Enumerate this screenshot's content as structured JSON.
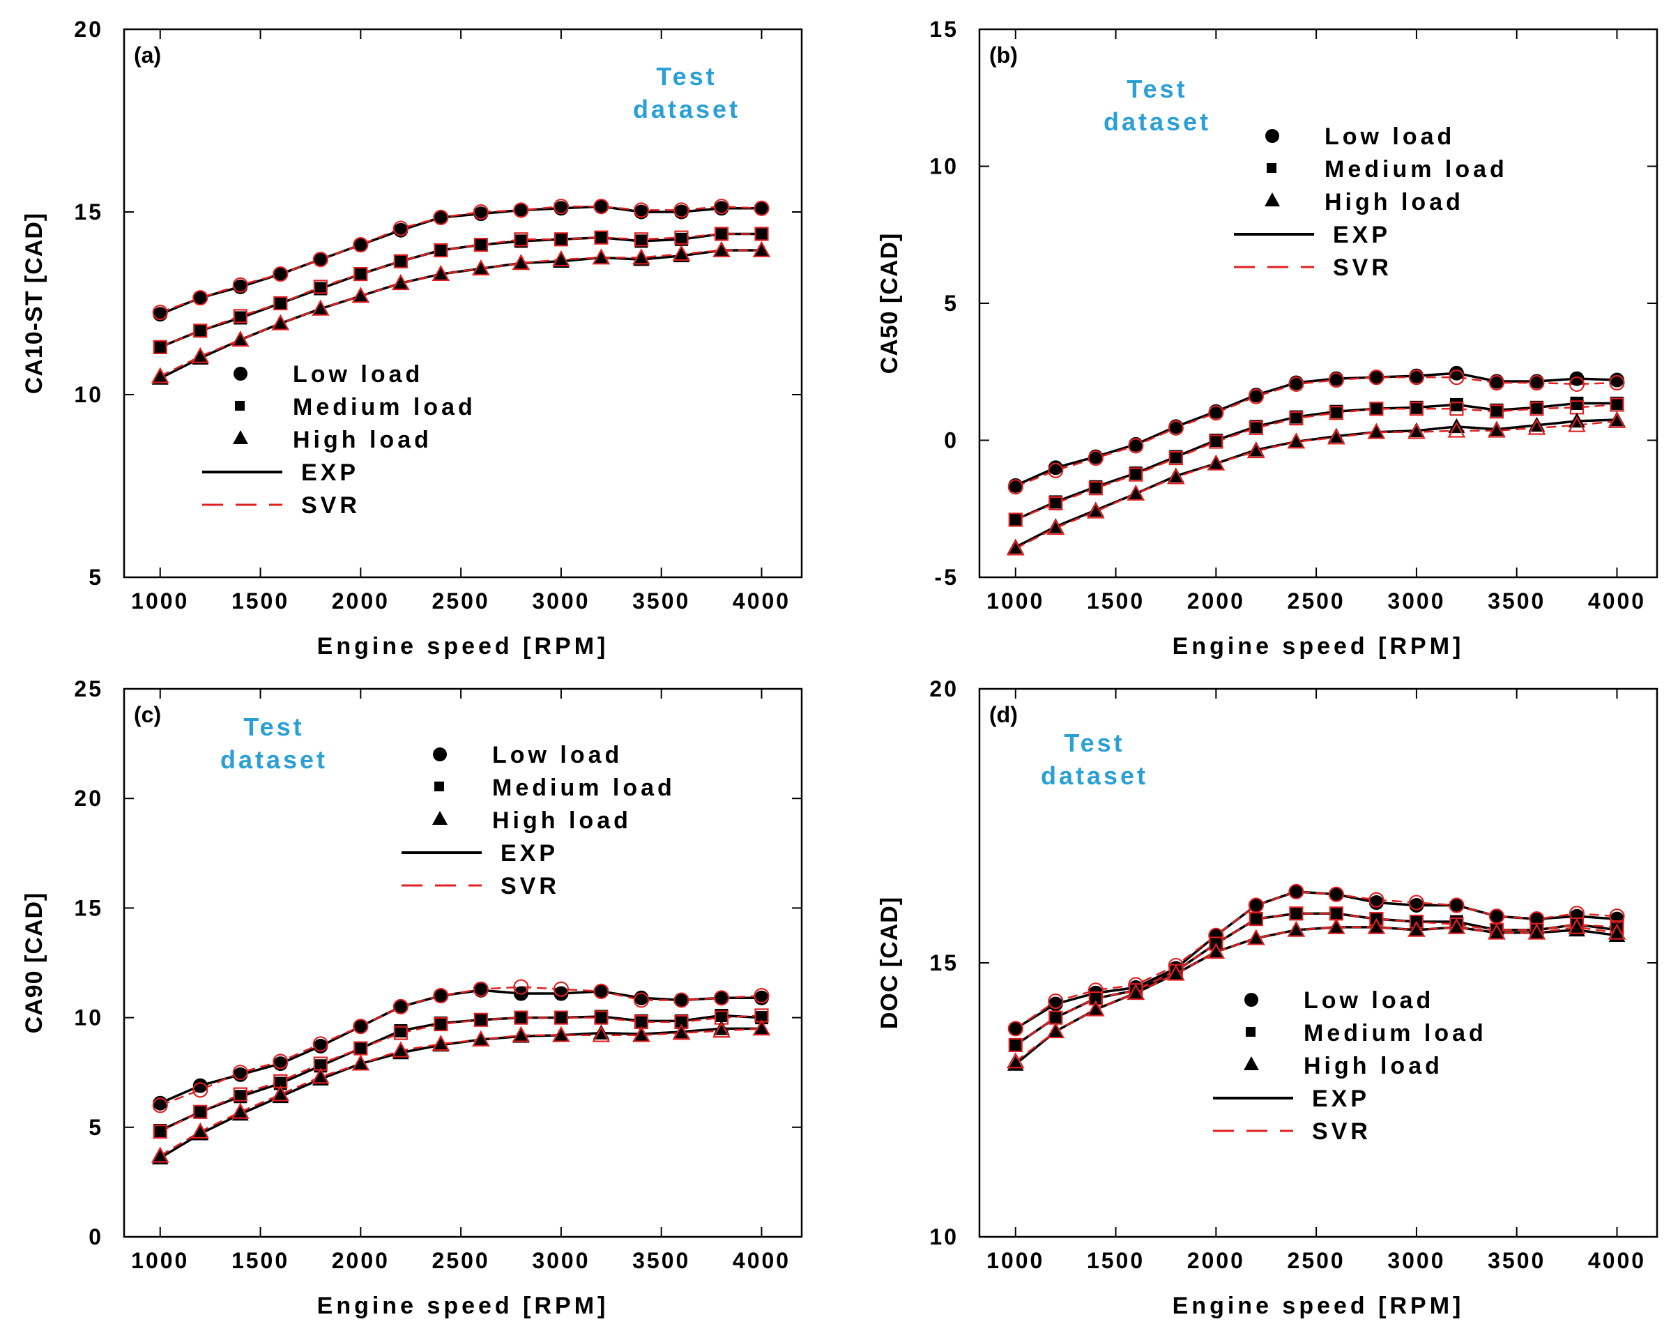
{
  "chart_data": [
    {
      "type": "line",
      "panel_label": "(a)",
      "annotation": [
        "Test",
        "dataset"
      ],
      "annotation_color": "#2a9fd6",
      "xlabel": "Engine speed [RPM]",
      "ylabel": "CA10-ST [CAD]",
      "xlim": [
        820,
        4200
      ],
      "ylim": [
        5,
        20
      ],
      "xticks": [
        1000,
        1500,
        2000,
        2500,
        3000,
        3500,
        4000
      ],
      "yticks": [
        5,
        10,
        15,
        20
      ],
      "x": [
        1000,
        1200,
        1400,
        1600,
        1800,
        2000,
        2200,
        2400,
        2600,
        2800,
        3000,
        3200,
        3400,
        3600,
        3800,
        4000
      ],
      "legend_position": "center-left",
      "series": [
        {
          "name": "Low load",
          "marker": "circle",
          "exp": [
            12.2,
            12.65,
            12.95,
            13.3,
            13.7,
            14.1,
            14.5,
            14.85,
            14.95,
            15.05,
            15.1,
            15.15,
            15.0,
            15.0,
            15.1,
            15.1
          ],
          "svr": [
            12.25,
            12.65,
            13.0,
            13.3,
            13.7,
            14.1,
            14.55,
            14.85,
            15.0,
            15.05,
            15.15,
            15.15,
            15.05,
            15.05,
            15.15,
            15.1
          ]
        },
        {
          "name": "Medium load",
          "marker": "square",
          "exp": [
            11.3,
            11.75,
            12.1,
            12.5,
            12.9,
            13.3,
            13.65,
            13.95,
            14.1,
            14.2,
            14.25,
            14.3,
            14.2,
            14.25,
            14.4,
            14.4
          ],
          "svr": [
            11.3,
            11.75,
            12.15,
            12.5,
            12.95,
            13.3,
            13.65,
            13.95,
            14.1,
            14.25,
            14.25,
            14.3,
            14.25,
            14.3,
            14.4,
            14.4
          ]
        },
        {
          "name": "High load",
          "marker": "triangle",
          "exp": [
            10.45,
            11.0,
            11.5,
            11.95,
            12.35,
            12.7,
            13.05,
            13.3,
            13.45,
            13.6,
            13.65,
            13.75,
            13.7,
            13.8,
            13.95,
            13.95
          ],
          "svr": [
            10.5,
            11.05,
            11.5,
            11.95,
            12.35,
            12.7,
            13.05,
            13.3,
            13.45,
            13.6,
            13.7,
            13.75,
            13.75,
            13.85,
            13.95,
            13.95
          ]
        }
      ],
      "line_legend": [
        {
          "name": "EXP",
          "color": "#000000",
          "dashed": false
        },
        {
          "name": "SVR",
          "color": "#e02020",
          "dashed": true
        }
      ]
    },
    {
      "type": "line",
      "panel_label": "(b)",
      "annotation": [
        "Test",
        "dataset"
      ],
      "annotation_color": "#2a9fd6",
      "xlabel": "Engine speed [RPM]",
      "ylabel": "CA50 [CAD]",
      "xlim": [
        820,
        4200
      ],
      "ylim": [
        -5,
        15
      ],
      "xticks": [
        1000,
        1500,
        2000,
        2500,
        3000,
        3500,
        4000
      ],
      "yticks": [
        -5,
        0,
        5,
        10,
        15
      ],
      "x": [
        1000,
        1200,
        1400,
        1600,
        1800,
        2000,
        2200,
        2400,
        2600,
        2800,
        3000,
        3200,
        3400,
        3600,
        3800,
        4000
      ],
      "legend_position": "top-right",
      "series": [
        {
          "name": "Low load",
          "marker": "circle",
          "exp": [
            -1.65,
            -1.0,
            -0.6,
            -0.15,
            0.5,
            1.05,
            1.65,
            2.1,
            2.25,
            2.3,
            2.35,
            2.45,
            2.15,
            2.15,
            2.25,
            2.2
          ],
          "svr": [
            -1.7,
            -1.1,
            -0.65,
            -0.2,
            0.45,
            1.0,
            1.6,
            2.05,
            2.2,
            2.3,
            2.3,
            2.3,
            2.1,
            2.1,
            2.05,
            2.1
          ]
        },
        {
          "name": "Medium load",
          "marker": "square",
          "exp": [
            -2.9,
            -2.25,
            -1.7,
            -1.2,
            -0.6,
            0.0,
            0.5,
            0.85,
            1.05,
            1.15,
            1.2,
            1.3,
            1.1,
            1.2,
            1.35,
            1.35
          ],
          "svr": [
            -2.9,
            -2.3,
            -1.75,
            -1.25,
            -0.65,
            -0.05,
            0.45,
            0.8,
            1.0,
            1.15,
            1.15,
            1.15,
            1.05,
            1.15,
            1.2,
            1.3
          ]
        },
        {
          "name": "High load",
          "marker": "triangle",
          "exp": [
            -3.9,
            -3.15,
            -2.55,
            -1.95,
            -1.3,
            -0.85,
            -0.35,
            -0.05,
            0.15,
            0.3,
            0.35,
            0.5,
            0.4,
            0.55,
            0.7,
            0.75
          ],
          "svr": [
            -3.95,
            -3.2,
            -2.6,
            -1.95,
            -1.35,
            -0.85,
            -0.4,
            -0.05,
            0.1,
            0.3,
            0.3,
            0.35,
            0.35,
            0.45,
            0.55,
            0.7
          ]
        }
      ],
      "line_legend": [
        {
          "name": "EXP",
          "color": "#000000",
          "dashed": false
        },
        {
          "name": "SVR",
          "color": "#e02020",
          "dashed": true
        }
      ]
    },
    {
      "type": "line",
      "panel_label": "(c)",
      "annotation": [
        "Test",
        "dataset"
      ],
      "annotation_color": "#2a9fd6",
      "xlabel": "Engine speed [RPM]",
      "ylabel": "CA90 [CAD]",
      "xlim": [
        820,
        4200
      ],
      "ylim": [
        0,
        25
      ],
      "xticks": [
        1000,
        1500,
        2000,
        2500,
        3000,
        3500,
        4000
      ],
      "yticks": [
        0,
        5,
        10,
        15,
        20,
        25
      ],
      "x": [
        1000,
        1200,
        1400,
        1600,
        1800,
        2000,
        2200,
        2400,
        2600,
        2800,
        3000,
        3200,
        3400,
        3600,
        3800,
        4000
      ],
      "legend_position": "top-right",
      "series": [
        {
          "name": "Low load",
          "marker": "circle",
          "exp": [
            6.1,
            6.9,
            7.4,
            7.9,
            8.7,
            9.6,
            10.5,
            11.0,
            11.25,
            11.1,
            11.1,
            11.2,
            10.9,
            10.8,
            10.9,
            10.9
          ],
          "svr": [
            6.0,
            6.7,
            7.5,
            8.0,
            8.8,
            9.6,
            10.5,
            11.0,
            11.3,
            11.4,
            11.3,
            11.2,
            10.8,
            10.8,
            10.9,
            11.0
          ]
        },
        {
          "name": "Medium load",
          "marker": "square",
          "exp": [
            4.85,
            5.7,
            6.4,
            7.0,
            7.8,
            8.6,
            9.4,
            9.75,
            9.9,
            10.0,
            10.0,
            10.05,
            9.85,
            9.85,
            10.1,
            10.0
          ],
          "svr": [
            4.8,
            5.7,
            6.5,
            7.1,
            7.9,
            8.6,
            9.3,
            9.7,
            9.9,
            10.0,
            10.0,
            10.0,
            9.8,
            9.8,
            10.0,
            10.1
          ]
        },
        {
          "name": "High load",
          "marker": "triangle",
          "exp": [
            3.6,
            4.7,
            5.6,
            6.4,
            7.2,
            7.9,
            8.4,
            8.75,
            9.0,
            9.15,
            9.2,
            9.3,
            9.25,
            9.35,
            9.5,
            9.5
          ],
          "svr": [
            3.7,
            4.8,
            5.7,
            6.5,
            7.3,
            7.9,
            8.5,
            8.8,
            9.0,
            9.2,
            9.2,
            9.2,
            9.2,
            9.3,
            9.4,
            9.5
          ]
        }
      ],
      "line_legend": [
        {
          "name": "EXP",
          "color": "#000000",
          "dashed": false
        },
        {
          "name": "SVR",
          "color": "#e02020",
          "dashed": true
        }
      ]
    },
    {
      "type": "line",
      "panel_label": "(d)",
      "annotation": [
        "Test",
        "dataset"
      ],
      "annotation_color": "#2a9fd6",
      "xlabel": "Engine speed [RPM]",
      "ylabel": "DOC [CAD]",
      "xlim": [
        820,
        4200
      ],
      "ylim": [
        10,
        20
      ],
      "xticks": [
        1000,
        1500,
        2000,
        2500,
        3000,
        3500,
        4000
      ],
      "yticks": [
        10,
        15,
        20
      ],
      "x": [
        1000,
        1200,
        1400,
        1600,
        1800,
        2000,
        2200,
        2400,
        2600,
        2800,
        3000,
        3200,
        3400,
        3600,
        3800,
        4000
      ],
      "legend_position": "bottom-right",
      "series": [
        {
          "name": "Low load",
          "marker": "circle",
          "exp": [
            13.8,
            14.25,
            14.45,
            14.55,
            14.9,
            15.5,
            16.05,
            16.3,
            16.25,
            16.1,
            16.05,
            16.05,
            15.85,
            15.8,
            15.85,
            15.8
          ],
          "svr": [
            13.8,
            14.3,
            14.5,
            14.6,
            14.95,
            15.5,
            16.05,
            16.3,
            16.25,
            16.15,
            16.1,
            16.05,
            15.85,
            15.8,
            15.9,
            15.85
          ]
        },
        {
          "name": "Medium load",
          "marker": "square",
          "exp": [
            13.5,
            14.0,
            14.35,
            14.5,
            14.85,
            15.35,
            15.8,
            15.9,
            15.9,
            15.8,
            15.75,
            15.75,
            15.6,
            15.6,
            15.7,
            15.6
          ],
          "svr": [
            13.5,
            14.0,
            14.35,
            14.5,
            14.85,
            15.35,
            15.8,
            15.9,
            15.9,
            15.8,
            15.75,
            15.7,
            15.6,
            15.6,
            15.7,
            15.65
          ]
        },
        {
          "name": "High load",
          "marker": "triangle",
          "exp": [
            13.15,
            13.75,
            14.15,
            14.45,
            14.8,
            15.2,
            15.45,
            15.6,
            15.65,
            15.65,
            15.6,
            15.65,
            15.55,
            15.55,
            15.6,
            15.5
          ],
          "svr": [
            13.2,
            13.75,
            14.15,
            14.45,
            14.8,
            15.2,
            15.45,
            15.6,
            15.65,
            15.65,
            15.6,
            15.65,
            15.55,
            15.55,
            15.65,
            15.55
          ]
        }
      ],
      "line_legend": [
        {
          "name": "EXP",
          "color": "#000000",
          "dashed": false
        },
        {
          "name": "SVR",
          "color": "#e02020",
          "dashed": true
        }
      ]
    }
  ]
}
